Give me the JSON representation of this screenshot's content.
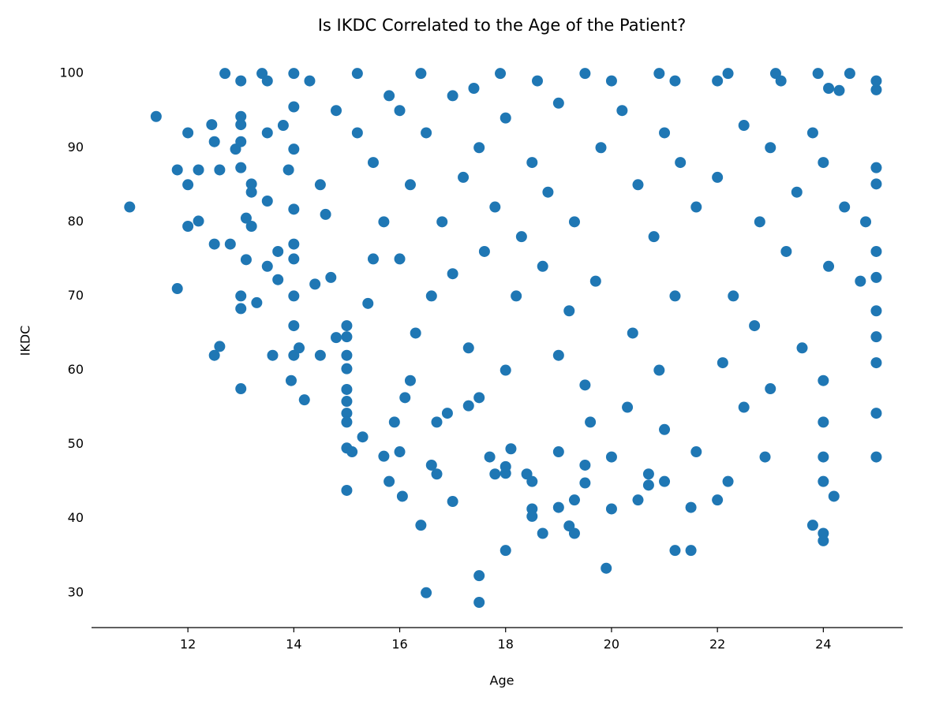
{
  "chart_data": {
    "type": "scatter",
    "title": "Is IKDC Correlated to the Age of the Patient?",
    "x_label": "Age",
    "y_label": "IKDC",
    "color": "#1f77b4",
    "xlim": [
      10.18,
      25.5
    ],
    "ylim": [
      25.3,
      101.4
    ],
    "xticks": [
      12,
      14,
      16,
      18,
      20,
      22,
      24
    ],
    "yticks": [
      30,
      40,
      50,
      60,
      70,
      80,
      90,
      100
    ],
    "x": [
      10.9,
      11.4,
      11.8,
      11.8,
      12,
      12,
      12,
      12.2,
      12.2,
      12.45,
      12.5,
      12.5,
      12.5,
      12.6,
      12.6,
      12.7,
      12.8,
      12.9,
      13,
      13,
      13,
      13,
      13,
      13,
      13,
      13,
      13.1,
      13.1,
      13.2,
      13.2,
      13.2,
      13.3,
      13.4,
      13.5,
      13.5,
      13.5,
      13.5,
      13.6,
      13.7,
      13.7,
      13.8,
      13.9,
      13.95,
      14,
      14,
      14,
      14,
      14,
      14,
      14,
      14,
      14,
      14.1,
      14.2,
      14.3,
      14.4,
      14.5,
      14.6,
      14.7,
      14.8,
      15,
      15,
      15,
      15,
      15,
      15,
      15,
      15,
      15,
      15,
      15.1,
      15.2,
      15.3,
      15.4,
      15.5,
      15.7,
      15.8,
      15.9,
      16,
      16.05,
      16.1,
      16.2,
      16.4,
      16.5,
      16.6,
      16.7,
      16.7,
      16.9,
      17,
      17.3,
      17.5,
      17.5,
      17.5,
      17.7,
      17.8,
      18,
      18,
      18,
      18.1,
      18.4,
      18.5,
      18.5,
      18.5,
      18.7,
      19,
      19,
      19.2,
      19.3,
      19.3,
      19.5,
      19.5,
      19.9,
      20,
      20,
      20.5,
      20.7,
      20.7,
      21,
      21.2,
      21.5,
      21.5,
      21.6,
      22,
      22.2,
      22.9,
      23.8,
      24,
      24,
      24,
      24,
      24,
      24,
      24.2,
      25,
      25,
      25,
      25,
      25,
      25,
      25,
      25,
      25,
      25,
      25,
      24.5,
      24.3,
      23.9,
      24.1,
      23.1,
      23.2,
      22.2,
      22,
      21.2,
      20.9,
      20,
      19.5,
      16,
      16.5,
      17,
      17.5,
      18,
      18.5,
      19,
      16.2,
      16.8,
      17.2,
      17.8,
      18.3,
      18.8,
      19.3,
      19.8,
      16,
      16.6,
      17,
      17.6,
      18.2,
      18.7,
      19.2,
      19.7,
      15.5,
      15.2,
      14.8,
      14.5,
      15.7,
      16.3,
      17.3,
      18,
      19,
      19.5,
      17.4,
      18.6,
      16.4,
      17.9,
      15.8,
      20.2,
      20.5,
      20.8,
      21,
      21.3,
      21.6,
      21.2,
      20.4,
      20.9,
      22,
      22.5,
      22.8,
      23,
      23.3,
      22.3,
      22.7,
      23.5,
      23.8,
      24,
      24.4,
      24.1,
      23.6,
      22.1,
      23,
      24.8,
      24.7,
      22.5,
      20.3,
      21,
      19.6
    ],
    "values": [
      82,
      94.2,
      87,
      71,
      92,
      85,
      79.4,
      80.1,
      87,
      93.1,
      90.8,
      77,
      62,
      63.2,
      87,
      100,
      77,
      89.8,
      99,
      93.1,
      94.2,
      90.8,
      87.3,
      70,
      68.3,
      57.5,
      80.5,
      74.9,
      85.1,
      84,
      79.4,
      69.1,
      100,
      99,
      92,
      82.8,
      74,
      62,
      72.2,
      76,
      93,
      87,
      58.6,
      100,
      75,
      95.5,
      89.8,
      81.7,
      77,
      70,
      66,
      62,
      63,
      56,
      99,
      71.6,
      62,
      81,
      72.5,
      64.4,
      66,
      64.5,
      62,
      60.2,
      57.4,
      55.8,
      54.2,
      53,
      49.5,
      43.8,
      49,
      100,
      51,
      69,
      75,
      48.4,
      45,
      53,
      49,
      43,
      56.3,
      58.6,
      39.1,
      30,
      47.2,
      46,
      53,
      54.2,
      42.3,
      55.2,
      32.3,
      28.7,
      56.3,
      48.3,
      46,
      35.7,
      46.1,
      47,
      49.4,
      46,
      41.3,
      40.3,
      45,
      38,
      41.5,
      49,
      39,
      42.5,
      38,
      44.8,
      47.2,
      33.3,
      41.3,
      48.3,
      42.5,
      44.5,
      46,
      45,
      35.7,
      35.7,
      41.5,
      49,
      42.5,
      45,
      48.3,
      39.1,
      38,
      37,
      45,
      48.3,
      53,
      58.6,
      43,
      48.3,
      54.2,
      61,
      64.5,
      68,
      72.5,
      76,
      85.1,
      87.3,
      97.8,
      99,
      100,
      97.7,
      100,
      98,
      100,
      99,
      100,
      99,
      99,
      100,
      99,
      100,
      95,
      92,
      97,
      90,
      94,
      88,
      96,
      85,
      80,
      86,
      82,
      78,
      84,
      80,
      90,
      75,
      70,
      73,
      76,
      70,
      74,
      68,
      72,
      88,
      92,
      95,
      85,
      80,
      65,
      63,
      60,
      62,
      58,
      98,
      99,
      100,
      100,
      97,
      95,
      85,
      78,
      92,
      88,
      82,
      70,
      65,
      60,
      86,
      93,
      80,
      90,
      76,
      70,
      66,
      84,
      92,
      88,
      82,
      74,
      63,
      61,
      57.5,
      80,
      72,
      55,
      55,
      52,
      53
    ]
  }
}
